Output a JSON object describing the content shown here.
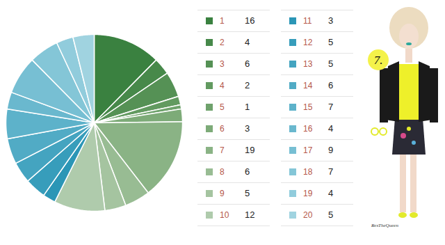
{
  "chart_data": {
    "type": "pie",
    "categories": [
      "1",
      "2",
      "3",
      "4",
      "5",
      "6",
      "7",
      "8",
      "9",
      "10",
      "11",
      "12",
      "13",
      "14",
      "15",
      "16",
      "17",
      "18",
      "19",
      "20"
    ],
    "values": [
      16,
      4,
      6,
      2,
      1,
      3,
      19,
      6,
      5,
      12,
      3,
      5,
      5,
      6,
      7,
      4,
      9,
      7,
      4,
      5
    ],
    "colors": [
      "#3a8140",
      "#47894a",
      "#559155",
      "#629a60",
      "#6fa26c",
      "#7dab78",
      "#8ab385",
      "#98bc93",
      "#a5c4a0",
      "#afcbac",
      "#2b96b6",
      "#379dbb",
      "#44a4c0",
      "#51abc5",
      "#5db2ca",
      "#6ab8ce",
      "#77bfd3",
      "#84c6d7",
      "#91ccdc",
      "#a0d3e0"
    ],
    "legend": "right",
    "annotations": [
      "7.",
      "ResTheQueen"
    ]
  }
}
